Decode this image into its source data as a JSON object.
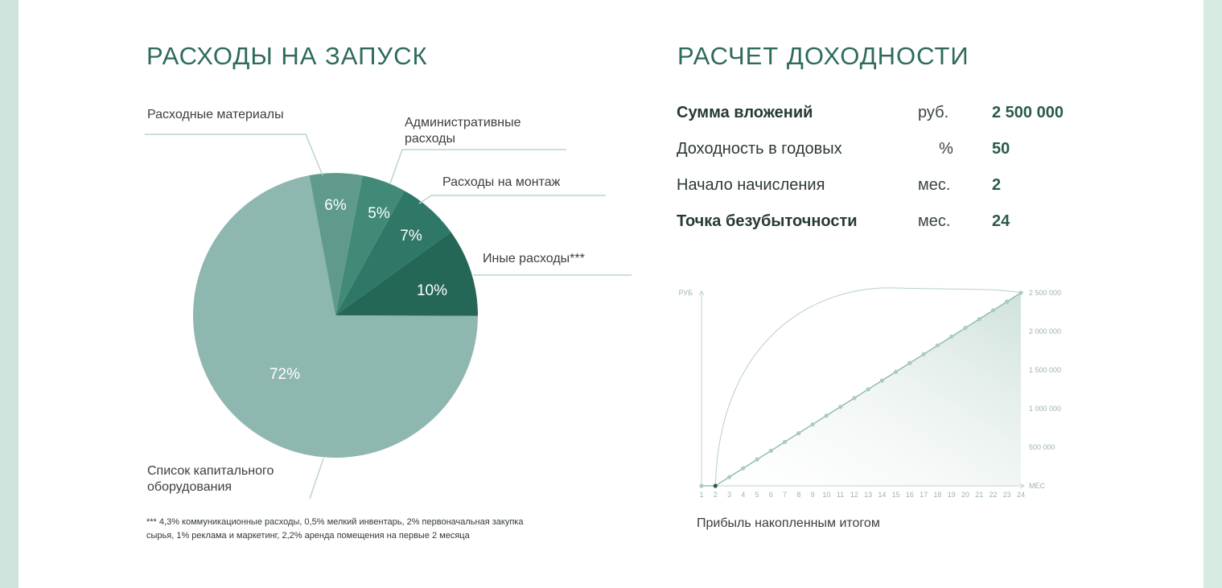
{
  "left": {
    "title": "РАСХОДЫ НА ЗАПУСК",
    "footnote_line1": "*** 4,3% коммуникационные расходы, 0,5% мелкий инвентарь, 2% первоначальная закупка",
    "footnote_line2": "сырья, 1% реклама и маркетинг, 2,2% аренда помещения на первые 2 месяца"
  },
  "right": {
    "title": "РАСЧЕТ ДОХОДНОСТИ",
    "metrics": [
      {
        "label": "Сумма вложений",
        "unit": "руб.",
        "value": "2 500 000"
      },
      {
        "label": "Доходность в годовых",
        "unit": "%",
        "value": "50"
      },
      {
        "label": "Начало начисления",
        "unit": "мес.",
        "value": "2"
      },
      {
        "label": "Точка безубыточности",
        "unit": "мес.",
        "value": "24"
      }
    ],
    "caption": "Прибыль накопленным итогом"
  },
  "colors": {
    "slice_capital": "#8eb7b0",
    "slice_materials": "#5f9a8d",
    "slice_admin": "#418a78",
    "slice_montage": "#2f7868",
    "slice_other": "#256756",
    "leader": "#b9d6cf",
    "title": "#2e6b5c"
  },
  "chart_data": [
    {
      "type": "pie",
      "slices": [
        {
          "label": "Расходные материалы",
          "label_lines": [
            "Расходные материалы"
          ],
          "value": 6,
          "pct_text": "6%"
        },
        {
          "label": "Административные расходы",
          "label_lines": [
            "Административные",
            "расходы"
          ],
          "value": 5,
          "pct_text": "5%"
        },
        {
          "label": "Расходы на монтаж",
          "label_lines": [
            "Расходы на монтаж"
          ],
          "value": 7,
          "pct_text": "7%"
        },
        {
          "label": "Иные расходы***",
          "label_lines": [
            "Иные расходы***"
          ],
          "value": 10,
          "pct_text": "10%"
        },
        {
          "label": "Список капитального оборудования",
          "label_lines": [
            "Список капитального",
            "оборудования"
          ],
          "value": 72,
          "pct_text": "72%"
        }
      ]
    },
    {
      "type": "area",
      "ylabel": "РУБ",
      "xlabel": "МЕС",
      "x": [
        1,
        2,
        3,
        4,
        5,
        6,
        7,
        8,
        9,
        10,
        11,
        12,
        13,
        14,
        15,
        16,
        17,
        18,
        19,
        20,
        21,
        22,
        23,
        24
      ],
      "y": [
        0,
        0,
        113636,
        227273,
        340909,
        454545,
        568182,
        681818,
        795455,
        909091,
        1022727,
        1136364,
        1250000,
        1363636,
        1477273,
        1590909,
        1704545,
        1818182,
        1931818,
        2045455,
        2159091,
        2272727,
        2386364,
        2500000
      ],
      "xlim": [
        1,
        24
      ],
      "ylim": [
        0,
        2500000
      ],
      "y_ticks": [
        500000,
        1000000,
        1500000,
        2000000,
        2500000
      ],
      "y_tick_labels": [
        "500 000",
        "1 000 000",
        "1 500 000",
        "2 000 000",
        "2 500 000"
      ],
      "curve": "arc"
    }
  ]
}
